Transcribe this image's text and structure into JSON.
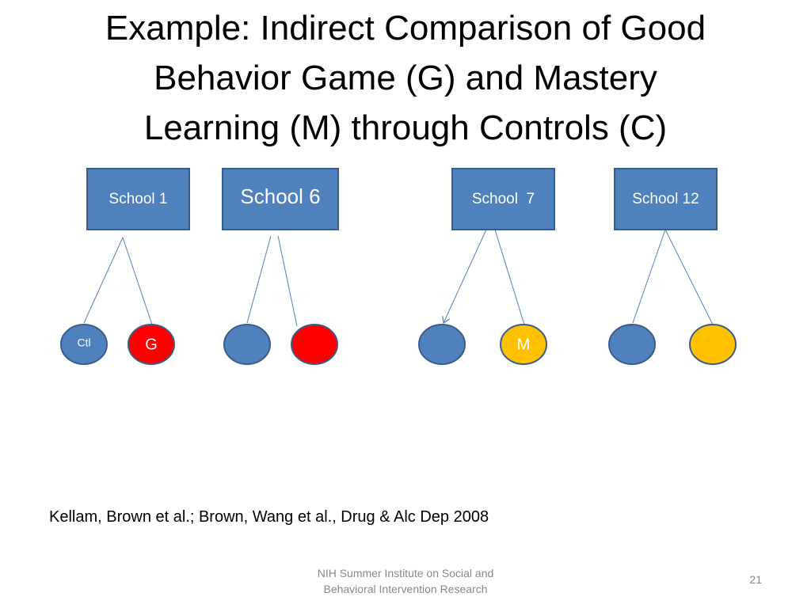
{
  "title": {
    "lines": [
      "Example: Indirect Comparison of Good",
      "Behavior Game (G) and Mastery",
      "Learning (M) through Controls (C)"
    ]
  },
  "colors": {
    "box_fill": "#4f81bd",
    "box_border": "#385d8a",
    "connector": "#4f81bd",
    "control": "#4f81bd",
    "good_behavior_game": "#ff0000",
    "mastery_learning": "#ffc000"
  },
  "schools": [
    {
      "label": "School 1",
      "children": [
        {
          "label": "Ctl",
          "fill": "#4f81bd",
          "text_color": "#ffffff"
        },
        {
          "label": "G",
          "fill": "#ff0000",
          "text_color": "#ffffff"
        }
      ]
    },
    {
      "label": "School 6",
      "children": [
        {
          "label": "",
          "fill": "#4f81bd",
          "text_color": "#ffffff"
        },
        {
          "label": "",
          "fill": "#ff0000",
          "text_color": "#ffffff"
        }
      ]
    },
    {
      "label": "School  7",
      "children": [
        {
          "label": "",
          "fill": "#4f81bd",
          "text_color": "#ffffff"
        },
        {
          "label": "M",
          "fill": "#ffc000",
          "text_color": "#ffffff"
        }
      ]
    },
    {
      "label": "School 12",
      "children": [
        {
          "label": "",
          "fill": "#4f81bd",
          "text_color": "#ffffff"
        },
        {
          "label": "",
          "fill": "#ffc000",
          "text_color": "#ffffff"
        }
      ]
    }
  ],
  "citation": "Kellam, Brown et al.; Brown, Wang et al., Drug & Alc Dep 2008",
  "footer": {
    "lines": [
      "NIH Summer Institute on Social and",
      "Behavioral Intervention Research"
    ]
  },
  "page_number": "21"
}
